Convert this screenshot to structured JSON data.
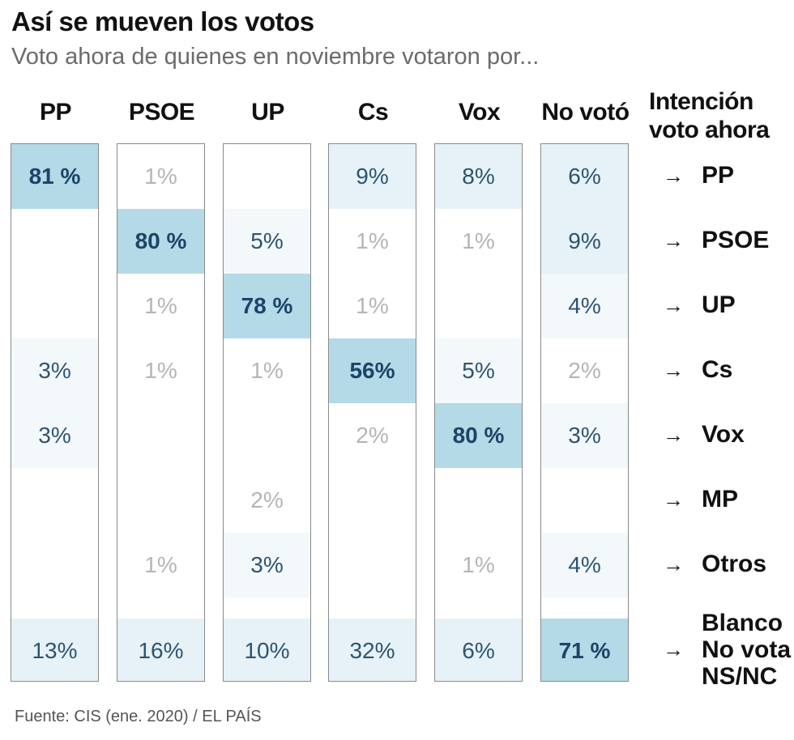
{
  "title": "Así se mueven los votos",
  "subtitle": "Voto ahora de quienes en noviembre votaron por...",
  "side_header": [
    "Intención",
    "voto ahora"
  ],
  "source": "Fuente: CIS (ene. 2020) / EL PAÍS",
  "colors": {
    "strong_bg": "#b4d9e7",
    "medium_bg": "#e6f2f7",
    "light_bg": "#f3f8fb",
    "strong_text": "#1c4467",
    "normal_text": "#2e5470",
    "faint_text": "#b5b5b5"
  },
  "chart_data": {
    "type": "table",
    "title": "Así se mueven los votos",
    "subtitle": "Voto ahora de quienes en noviembre votaron por...",
    "columns": [
      "PP",
      "PSOE",
      "UP",
      "Cs",
      "Vox",
      "No votó"
    ],
    "rows": [
      {
        "label": "→ PP",
        "lines": [
          "PP"
        ]
      },
      {
        "label": "→ PSOE",
        "lines": [
          "PSOE"
        ]
      },
      {
        "label": "→ UP",
        "lines": [
          "UP"
        ]
      },
      {
        "label": "→ Cs",
        "lines": [
          "Cs"
        ]
      },
      {
        "label": "→ Vox",
        "lines": [
          "Vox"
        ]
      },
      {
        "label": "→ MP",
        "lines": [
          "MP"
        ]
      },
      {
        "label": "→ Otros",
        "lines": [
          "Otros"
        ]
      },
      {
        "label": "→ Blanco No vota NS/NC",
        "lines": [
          "Blanco",
          "No vota",
          "NS/NC"
        ]
      }
    ],
    "values": [
      [
        81,
        1,
        null,
        9,
        8,
        6
      ],
      [
        null,
        80,
        5,
        1,
        1,
        9
      ],
      [
        null,
        1,
        78,
        1,
        null,
        4
      ],
      [
        3,
        1,
        1,
        56,
        5,
        2
      ],
      [
        3,
        null,
        null,
        2,
        80,
        3
      ],
      [
        null,
        null,
        2,
        null,
        null,
        null
      ],
      [
        null,
        1,
        3,
        null,
        1,
        4
      ],
      [
        13,
        16,
        10,
        32,
        6,
        71
      ]
    ],
    "cell_text": [
      [
        "81 %",
        "1%",
        "",
        "9%",
        "8%",
        "6%"
      ],
      [
        "",
        "80 %",
        "5%",
        "1%",
        "1%",
        "9%"
      ],
      [
        "",
        "1%",
        "78 %",
        "1%",
        "",
        "4%"
      ],
      [
        "3%",
        "1%",
        "1%",
        "56%",
        "5%",
        "2%"
      ],
      [
        "3%",
        "",
        "",
        "2%",
        "80 %",
        "3%"
      ],
      [
        "",
        "",
        "2%",
        "",
        "",
        ""
      ],
      [
        "",
        "1%",
        "3%",
        "",
        "1%",
        "4%"
      ],
      [
        "13%",
        "16%",
        "10%",
        "32%",
        "6%",
        "71 %"
      ]
    ],
    "arrow": "→"
  }
}
